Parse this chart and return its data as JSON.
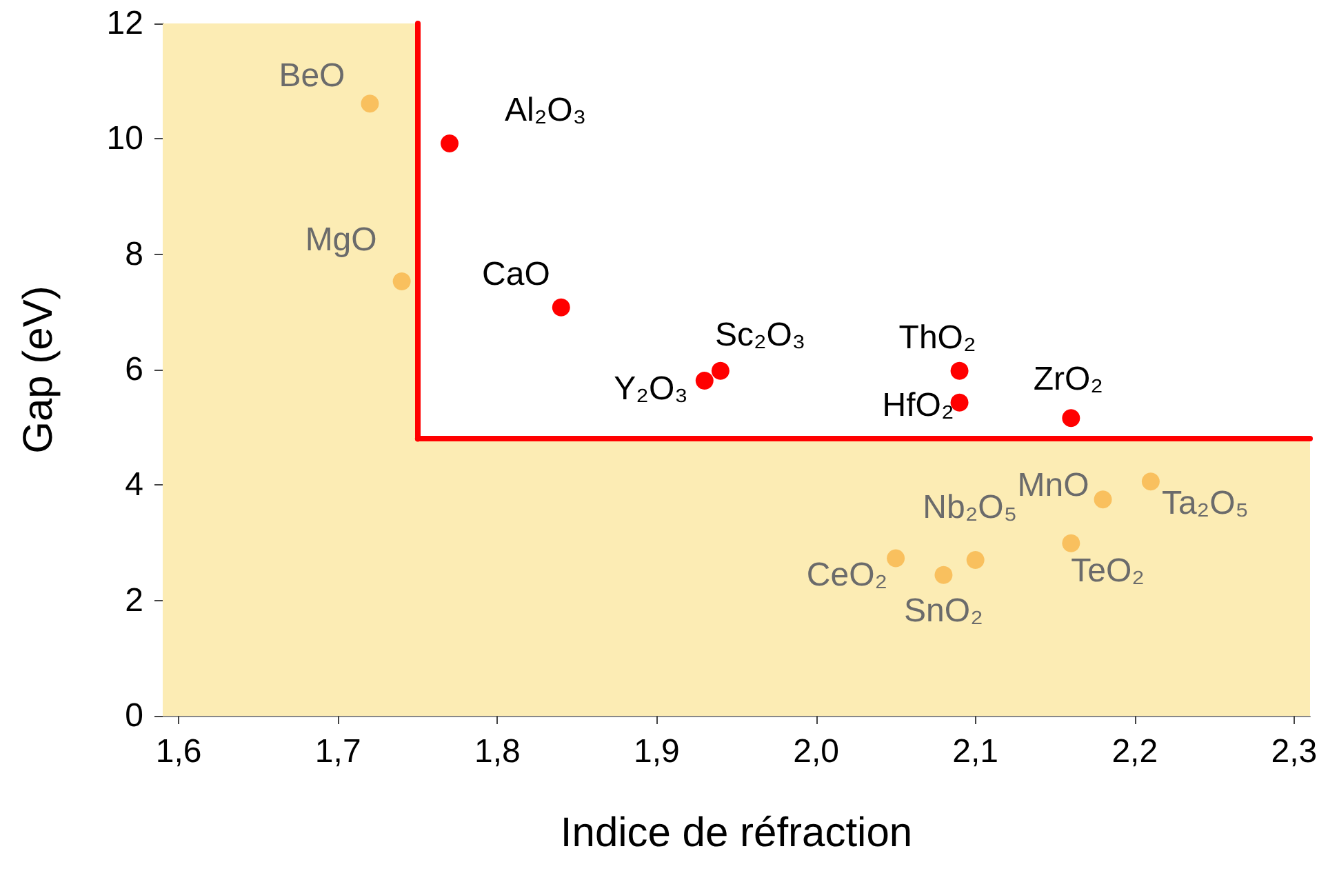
{
  "chart_data": {
    "type": "scatter",
    "xlabel": "Indice de réfraction",
    "ylabel": "Gap (eV)",
    "xlim": [
      1.59,
      2.31
    ],
    "ylim": [
      0,
      12
    ],
    "xticks": [
      {
        "value": 1.6,
        "label": "1,6"
      },
      {
        "value": 1.7,
        "label": "1,7"
      },
      {
        "value": 1.8,
        "label": "1,8"
      },
      {
        "value": 1.9,
        "label": "1,9"
      },
      {
        "value": 2.0,
        "label": "2,0"
      },
      {
        "value": 2.1,
        "label": "2,1"
      },
      {
        "value": 2.2,
        "label": "2,2"
      },
      {
        "value": 2.3,
        "label": "2,3"
      }
    ],
    "yticks": [
      0,
      2,
      4,
      6,
      8,
      10,
      12
    ],
    "grid": false,
    "marker": "circle",
    "series": [
      {
        "color": "#ff0000",
        "x": [
          1.77,
          1.84,
          1.93,
          1.94,
          2.09,
          2.09,
          2.16
        ],
        "values": [
          9.92,
          7.08,
          5.81,
          5.98,
          5.98,
          5.43,
          5.16
        ]
      },
      {
        "color": "#f7b548",
        "x": [
          1.72,
          1.74,
          2.18,
          2.21,
          2.16,
          2.1,
          2.05,
          2.08
        ],
        "values": [
          10.61,
          7.53,
          3.75,
          4.06,
          2.99,
          2.7,
          2.73,
          2.44
        ]
      }
    ],
    "bands": [
      {
        "axis": "x",
        "from": 1.59,
        "to": 1.75,
        "color": "#fcecb4"
      },
      {
        "axis": "y",
        "from": 0,
        "to": 4.8,
        "color": "#fcecb4"
      }
    ],
    "ref_lines": [
      {
        "axis": "x",
        "value": 1.75,
        "color": "#ff0000"
      },
      {
        "axis": "y",
        "value": 4.8,
        "color": "#ff0000"
      }
    ],
    "annotations": [
      {
        "text": "Al₂O₃",
        "x": 1.77,
        "y": 9.92
      },
      {
        "text": "CaO",
        "x": 1.84,
        "y": 7.08
      },
      {
        "text": "Y₂O₃",
        "x": 1.93,
        "y": 5.81
      },
      {
        "text": "Sc₂O₃",
        "x": 1.94,
        "y": 5.98
      },
      {
        "text": "ThO₂",
        "x": 2.09,
        "y": 5.98
      },
      {
        "text": "HfO₂",
        "x": 2.09,
        "y": 5.43
      },
      {
        "text": "ZrO₂",
        "x": 2.16,
        "y": 5.16
      },
      {
        "text": "BeO",
        "x": 1.72,
        "y": 10.61
      },
      {
        "text": "MgO",
        "x": 1.74,
        "y": 7.53
      },
      {
        "text": "MnO",
        "x": 2.18,
        "y": 3.75
      },
      {
        "text": "Ta₂O₅",
        "x": 2.21,
        "y": 4.06
      },
      {
        "text": "TeO₂",
        "x": 2.16,
        "y": 2.99
      },
      {
        "text": "Nb₂O₅",
        "x": 2.1,
        "y": 2.7
      },
      {
        "text": "CeO₂",
        "x": 2.05,
        "y": 2.73
      },
      {
        "text": "SnO₂",
        "x": 2.08,
        "y": 2.44
      }
    ]
  }
}
